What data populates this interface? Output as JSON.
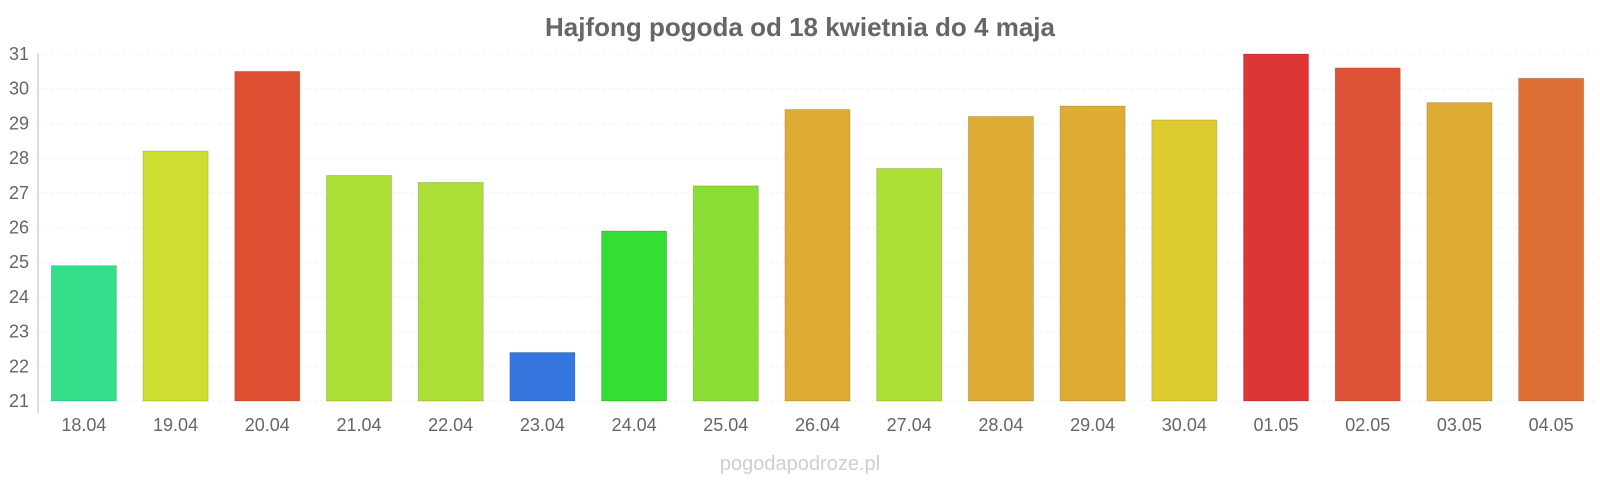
{
  "chart_data": {
    "type": "bar",
    "title": "Hajfong pogoda od 18 kwietnia do 4 maja",
    "xlabel": "",
    "ylabel": "",
    "ylim": [
      21,
      31
    ],
    "yticks": [
      21,
      22,
      23,
      24,
      25,
      26,
      27,
      28,
      29,
      30,
      31
    ],
    "grid": true,
    "categories": [
      "18.04",
      "19.04",
      "20.04",
      "21.04",
      "22.04",
      "23.04",
      "24.04",
      "25.04",
      "26.04",
      "27.04",
      "28.04",
      "29.04",
      "30.04",
      "01.05",
      "02.05",
      "03.05",
      "04.05"
    ],
    "values": [
      24.9,
      28.2,
      30.5,
      27.5,
      27.3,
      22.4,
      25.9,
      27.2,
      29.4,
      27.7,
      29.2,
      29.5,
      29.1,
      31.0,
      30.6,
      29.6,
      30.3
    ],
    "colors": [
      "#35de8b",
      "#cedd31",
      "#de4f31",
      "#acde35",
      "#acde35",
      "#3577de",
      "#35de35",
      "#8bde35",
      "#deab35",
      "#acde35",
      "#deab35",
      "#deab35",
      "#decb31",
      "#de3535",
      "#de5335",
      "#deab35",
      "#de6f35"
    ]
  },
  "footer": {
    "source": "pogodapodroze.pl"
  }
}
